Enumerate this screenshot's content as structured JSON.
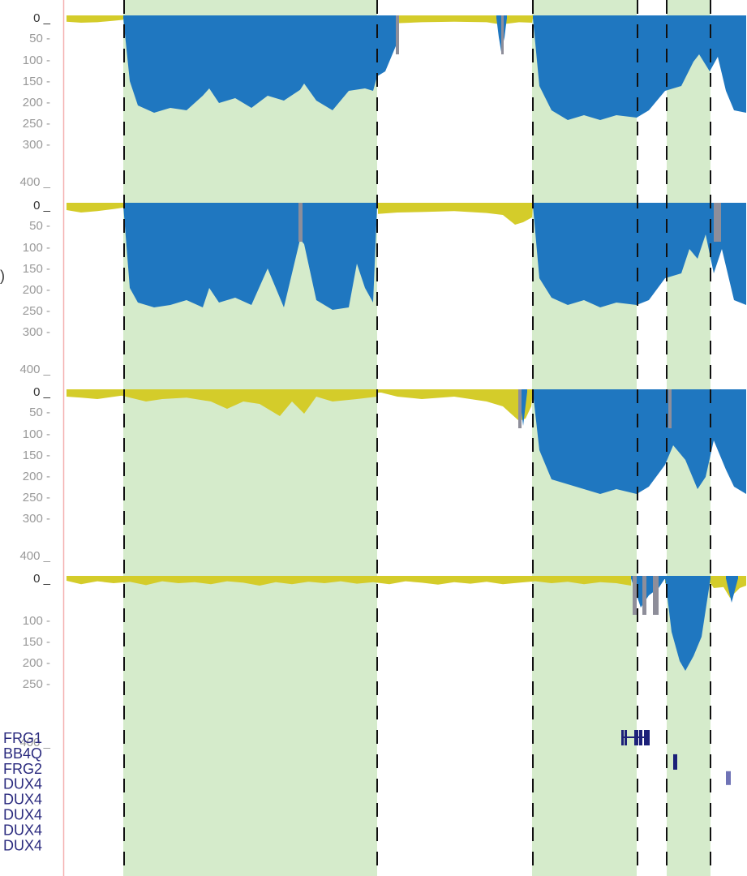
{
  "colors": {
    "above": "#d4cc2a",
    "below": "#1f77c0",
    "gap": "#8e8e9a",
    "highlight": "#d5ebcb",
    "axis_line": "#f4b1b1",
    "gene": "#1c2079",
    "gene_light": "#6f73b6",
    "tick_text": "#999999",
    "zero_text": "#333333"
  },
  "side_text": ")",
  "chart_data": {
    "type": "area",
    "x_range": [
      0,
      920
    ],
    "highlight_regions": [
      [
        152,
        465
      ],
      [
        656,
        785
      ],
      [
        822,
        876
      ]
    ],
    "dashed_lines": [
      153,
      465,
      657,
      786,
      822,
      876
    ],
    "tracks": [
      {
        "ylim": [
          0,
          400
        ],
        "tick_labels": [
          "0 _",
          "50 -",
          "100 -",
          "150 -",
          "200 -",
          "250 -",
          "300 -",
          "400 _"
        ],
        "tick_values": [
          0,
          50,
          100,
          150,
          200,
          250,
          300,
          400
        ],
        "above": {
          "x": [
            82,
            100,
            120,
            140,
            152,
            152,
            466,
            466,
            478,
            490,
            520,
            560,
            600,
            612,
            618,
            625,
            640,
            656,
            657
          ],
          "y": [
            8,
            10,
            9,
            6,
            4,
            0,
            0,
            10,
            12,
            11,
            9,
            8,
            9,
            12,
            14,
            12,
            9,
            10,
            0
          ]
        },
        "below": [
          {
            "x": [
              152,
              160,
              170,
              190,
              210,
              230,
              250,
              258,
              270,
              290,
              310,
              330,
              350,
              370,
              375,
              390,
              410,
              430,
              450,
              460,
              465,
              475,
              490
            ],
            "y": [
              0,
              130,
              180,
              195,
              185,
              190,
              160,
              145,
              175,
              165,
              185,
              160,
              170,
              148,
              135,
              170,
              190,
              150,
              145,
              150,
              120,
              110,
              50
            ]
          },
          {
            "x": [
              612,
              615,
              618,
              622,
              625
            ],
            "y": [
              0,
              40,
              70,
              40,
              0
            ]
          },
          {
            "x": [
              657,
              665,
              680,
              700,
              720,
              740,
              760,
              785,
              800,
              820,
              840,
              855,
              862,
              875,
              885,
              895,
              905,
              920
            ],
            "y": [
              0,
              140,
              190,
              210,
              200,
              210,
              200,
              205,
              190,
              150,
              140,
              90,
              75,
              110,
              80,
              150,
              190,
              195
            ]
          }
        ],
        "gap": [
          [
            488,
            492
          ],
          [
            618,
            621
          ]
        ]
      },
      {
        "ylim": [
          0,
          400
        ],
        "tick_labels": [
          "0 _",
          "50 -",
          "100 -",
          "150 -",
          "200 -",
          "250 -",
          "300 -",
          "400 _"
        ],
        "tick_values": [
          0,
          50,
          100,
          150,
          200,
          250,
          300,
          400
        ],
        "above": {
          "x": [
            82,
            100,
            120,
            140,
            152,
            152,
            466,
            466,
            490,
            520,
            560,
            600,
            620,
            635,
            645,
            656,
            657
          ],
          "y": [
            10,
            15,
            12,
            8,
            5,
            0,
            0,
            18,
            15,
            14,
            12,
            16,
            20,
            40,
            35,
            25,
            0
          ]
        },
        "below": [
          {
            "x": [
              152,
              160,
              170,
              190,
              210,
              230,
              250,
              258,
              270,
              290,
              310,
              330,
              350,
              370,
              375,
              390,
              410,
              430,
              440,
              450,
              460,
              465
            ],
            "y": [
              0,
              170,
              200,
              210,
              205,
              195,
              210,
              170,
              200,
              190,
              205,
              130,
              210,
              70,
              80,
              195,
              215,
              210,
              120,
              170,
              200,
              0
            ]
          },
          {
            "x": [
              657,
              665,
              680,
              700,
              720,
              740,
              760,
              785,
              800,
              820,
              840,
              850,
              860,
              870,
              880,
              890,
              905,
              920
            ],
            "y": [
              0,
              150,
              190,
              205,
              195,
              210,
              200,
              205,
              195,
              150,
              140,
              90,
              110,
              60,
              140,
              90,
              195,
              205
            ]
          }
        ],
        "gap": [
          [
            368,
            373
          ],
          [
            880,
            889
          ]
        ]
      },
      {
        "ylim": [
          0,
          400
        ],
        "tick_labels": [
          "0 _",
          "50 -",
          "100 -",
          "150 -",
          "200 -",
          "250 -",
          "300 -",
          "400 _"
        ],
        "tick_values": [
          0,
          50,
          100,
          150,
          200,
          250,
          300,
          400
        ],
        "above": {
          "x": [
            82,
            100,
            120,
            150,
            180,
            200,
            230,
            260,
            280,
            300,
            320,
            345,
            360,
            375,
            390,
            410,
            440,
            465,
            466,
            490,
            520,
            560,
            600,
            620,
            630,
            640,
            648,
            655,
            657
          ],
          "y": [
            10,
            12,
            15,
            8,
            20,
            15,
            12,
            20,
            35,
            20,
            25,
            50,
            20,
            45,
            10,
            20,
            15,
            10,
            0,
            10,
            15,
            10,
            20,
            30,
            45,
            60,
            55,
            30,
            0
          ]
        },
        "below": [
          {
            "x": [
              640,
              645,
              650
            ],
            "y": [
              0,
              70,
              0
            ]
          },
          {
            "x": [
              657,
              665,
              680,
              700,
              720,
              740,
              760,
              785,
              800,
              820,
              830,
              845,
              860,
              870,
              880,
              895,
              905,
              920
            ],
            "y": [
              0,
              120,
              180,
              190,
              200,
              210,
              200,
              210,
              195,
              150,
              110,
              140,
              200,
              175,
              100,
              160,
              195,
              210
            ]
          }
        ],
        "gap": [
          [
            639,
            643
          ],
          [
            824,
            828
          ]
        ]
      },
      {
        "ylim": [
          0,
          400
        ],
        "tick_labels": [
          "0 _",
          "100 -",
          "150 -",
          "200 -",
          "250 -",
          "400 _"
        ],
        "tick_values": [
          0,
          100,
          150,
          200,
          250,
          400
        ],
        "above": {
          "x": [
            82,
            100,
            120,
            140,
            160,
            180,
            200,
            220,
            240,
            260,
            280,
            300,
            320,
            340,
            360,
            380,
            400,
            420,
            440,
            460,
            480,
            500,
            520,
            540,
            560,
            580,
            600,
            620,
            640,
            660,
            680,
            700,
            720,
            740,
            760,
            778,
            778,
            820,
            820,
            876,
            880,
            892,
            900,
            906,
            912,
            920
          ],
          "y": [
            5,
            12,
            6,
            10,
            7,
            14,
            6,
            10,
            8,
            12,
            6,
            9,
            15,
            8,
            12,
            7,
            10,
            6,
            11,
            8,
            12,
            6,
            9,
            13,
            8,
            11,
            7,
            12,
            9,
            6,
            10,
            7,
            12,
            8,
            10,
            15,
            0,
            0,
            10,
            10,
            20,
            18,
            40,
            30,
            20,
            15
          ]
        },
        "below": [
          {
            "x": [
              778,
              790,
              800,
              812,
              820
            ],
            "y": [
              0,
              60,
              35,
              20,
              0
            ]
          },
          {
            "x": [
              820,
              828,
              838,
              845,
              855,
              865,
              876
            ],
            "y": [
              0,
              110,
              170,
              190,
              160,
              120,
              0
            ]
          },
          {
            "x": [
              895,
              902,
              910
            ],
            "y": [
              0,
              50,
              0
            ]
          }
        ],
        "gap": [
          [
            780,
            785
          ],
          [
            792,
            797
          ],
          [
            805,
            812
          ]
        ]
      }
    ],
    "genes": [
      {
        "label": "FRG1",
        "x": [
          766,
          801
        ],
        "style": "thick-exons"
      },
      {
        "label": "BB4Q",
        "x": [
          830,
          835
        ],
        "style": "block"
      },
      {
        "label": "FRG2",
        "x": [
          895,
          901
        ],
        "style": "light-block"
      },
      {
        "label": "DUX4",
        "x": [],
        "style": "none"
      },
      {
        "label": "DUX4",
        "x": [],
        "style": "none"
      },
      {
        "label": "DUX4",
        "x": [],
        "style": "none"
      },
      {
        "label": "DUX4",
        "x": [],
        "style": "none"
      },
      {
        "label": "DUX4",
        "x": [],
        "style": "none"
      }
    ]
  }
}
